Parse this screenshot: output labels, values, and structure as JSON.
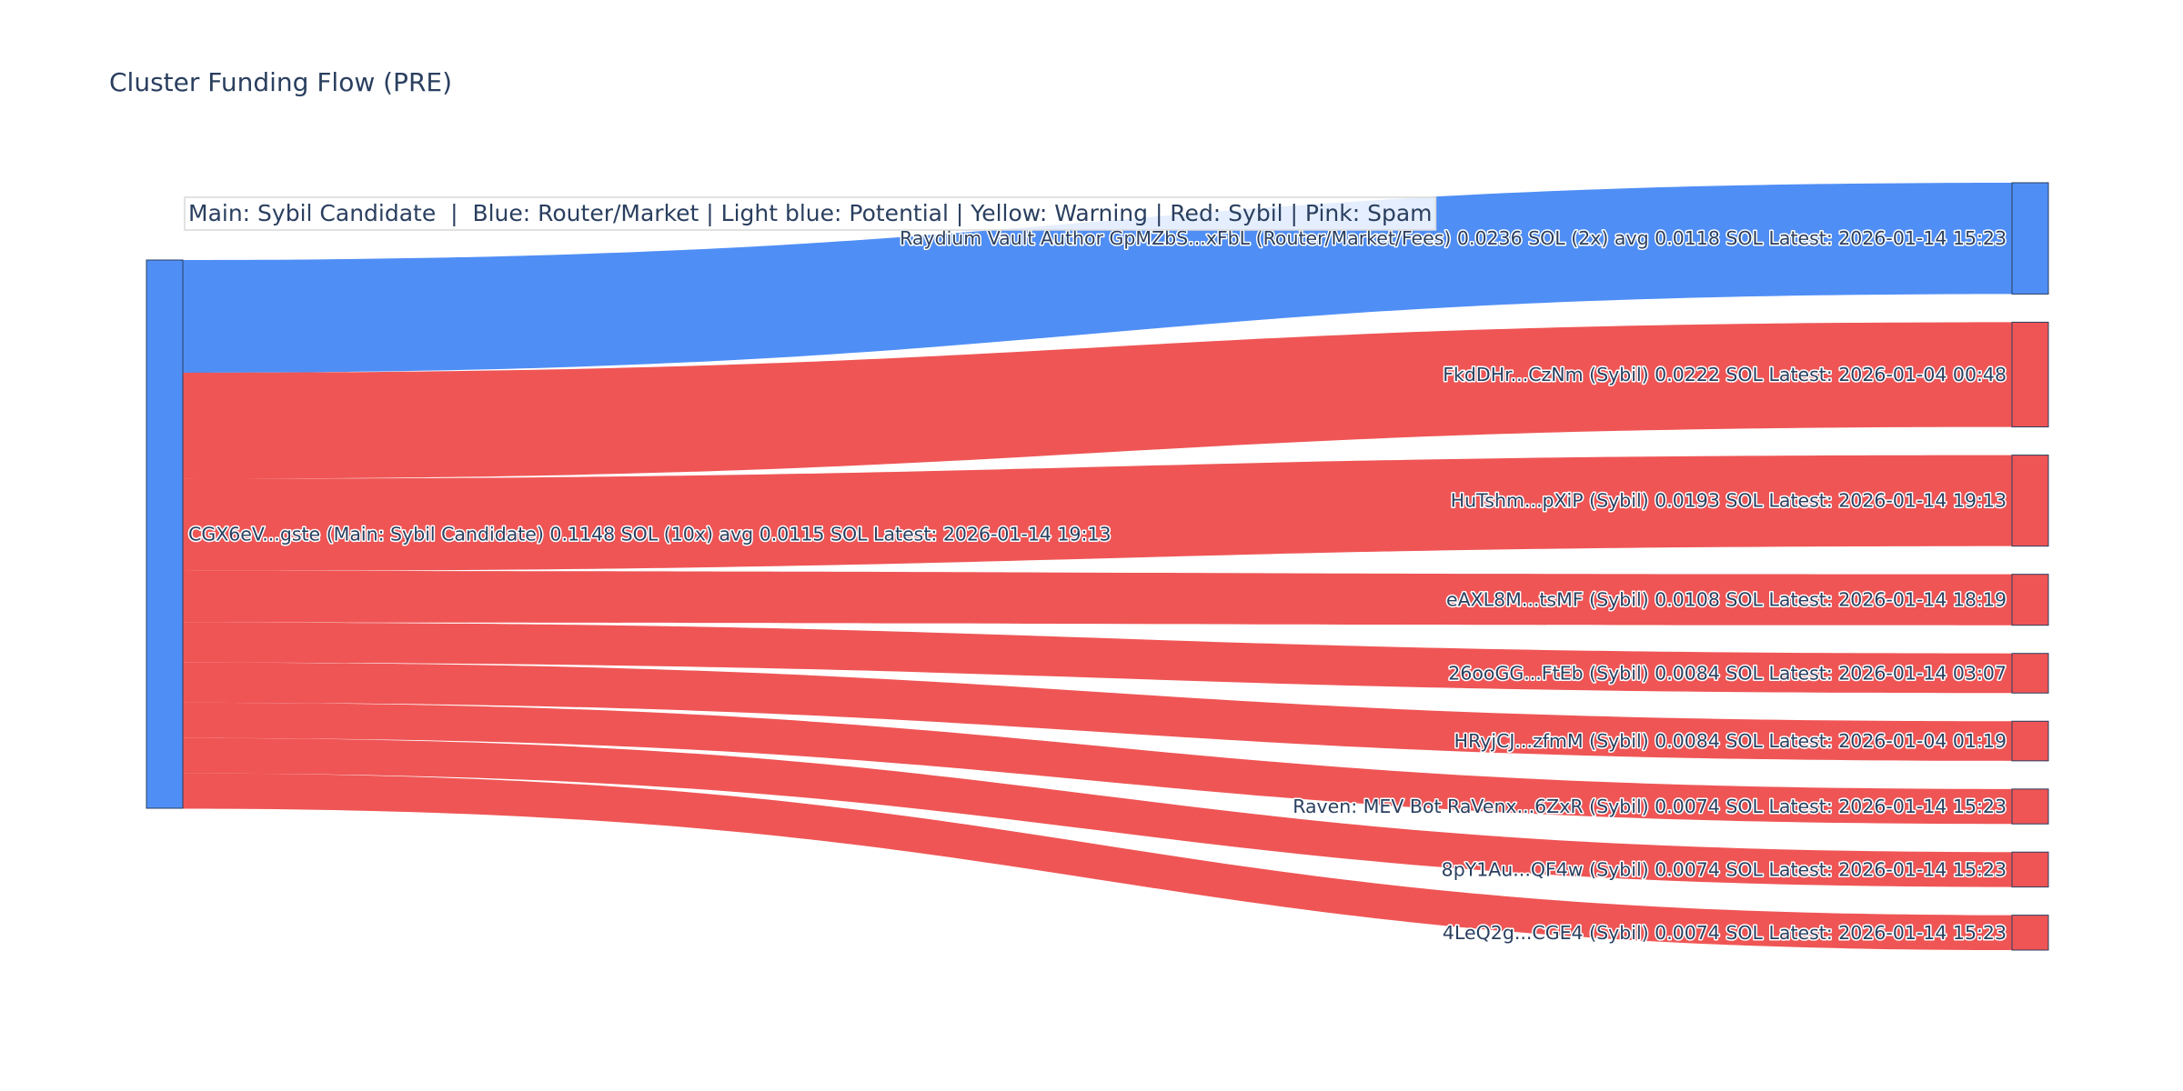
{
  "chart_data": {
    "type": "sankey",
    "title": "Cluster Funding Flow (PRE)",
    "legend_note": "Main: Sybil Candidate  |  Blue: Router/Market | Light blue: Potential | Yellow: Warning | Red: Sybil | Pink: Spam",
    "colors": {
      "router_market": "#4f8ef5",
      "sybil": "#ef5555",
      "main": "#4f8ef5"
    },
    "source": {
      "label": "CGX6eV...gste (Main: Sybil Candidate) 0.1148 SOL (10x) avg 0.0115 SOL Latest: 2026-01-14 19:13",
      "category": "main",
      "value": 0.1148
    },
    "targets": [
      {
        "label": "Raydium Vault Author GpMZbS...xFbL (Router/Market/Fees) 0.0236 SOL (2x) avg 0.0118 SOL Latest: 2026-01-14 15:23",
        "value": 0.0236,
        "category": "router_market"
      },
      {
        "label": "FkdDHr...CzNm (Sybil) 0.0222 SOL Latest: 2026-01-04 00:48",
        "value": 0.0222,
        "category": "sybil"
      },
      {
        "label": "HuTshm...pXiP (Sybil) 0.0193 SOL Latest: 2026-01-14 19:13",
        "value": 0.0193,
        "category": "sybil"
      },
      {
        "label": "eAXL8M...tsMF (Sybil) 0.0108 SOL Latest: 2026-01-14 18:19",
        "value": 0.0108,
        "category": "sybil"
      },
      {
        "label": "26ooGG...FtEb (Sybil) 0.0084 SOL Latest: 2026-01-14 03:07",
        "value": 0.0084,
        "category": "sybil"
      },
      {
        "label": "HRyjCJ...zfmM (Sybil) 0.0084 SOL Latest: 2026-01-04 01:19",
        "value": 0.0084,
        "category": "sybil"
      },
      {
        "label": "Raven: MEV Bot RaVenx...6ZxR (Sybil) 0.0074 SOL Latest: 2026-01-14 15:23",
        "value": 0.0074,
        "category": "sybil"
      },
      {
        "label": "8pY1Au...QF4w (Sybil) 0.0074 SOL Latest: 2026-01-14 15:23",
        "value": 0.0074,
        "category": "sybil"
      },
      {
        "label": "4LeQ2g...CGE4 (Sybil) 0.0074 SOL Latest: 2026-01-14 15:23",
        "value": 0.0074,
        "category": "sybil"
      }
    ]
  }
}
